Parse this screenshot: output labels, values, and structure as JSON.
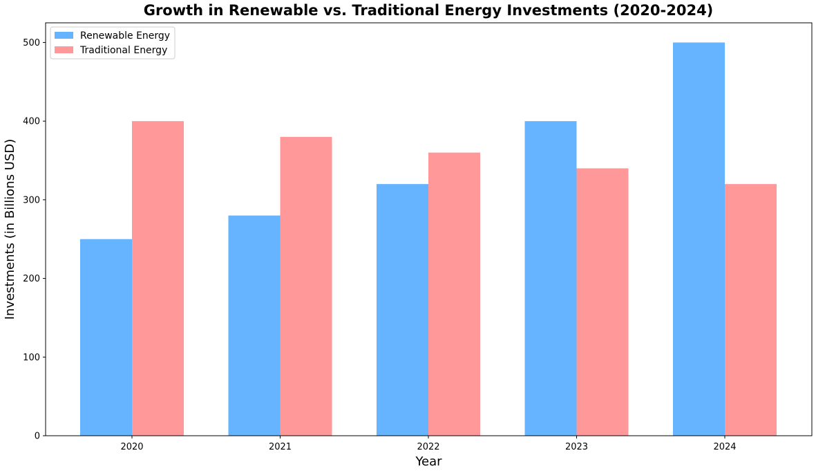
{
  "chart_data": {
    "type": "bar",
    "title": "Growth in Renewable vs. Traditional Energy Investments (2020-2024)",
    "xlabel": "Year",
    "ylabel": "Investments (in Billions USD)",
    "categories": [
      "2020",
      "2021",
      "2022",
      "2023",
      "2024"
    ],
    "series": [
      {
        "name": "Renewable Energy",
        "values": [
          250,
          280,
          320,
          400,
          500
        ],
        "color": "#66b3ff"
      },
      {
        "name": "Traditional Energy",
        "values": [
          400,
          380,
          360,
          340,
          320
        ],
        "color": "#ff9999"
      }
    ],
    "ylim": [
      0,
      525
    ],
    "yticks": [
      0,
      100,
      200,
      300,
      400,
      500
    ],
    "grid": false,
    "legend_position": "upper-left"
  }
}
